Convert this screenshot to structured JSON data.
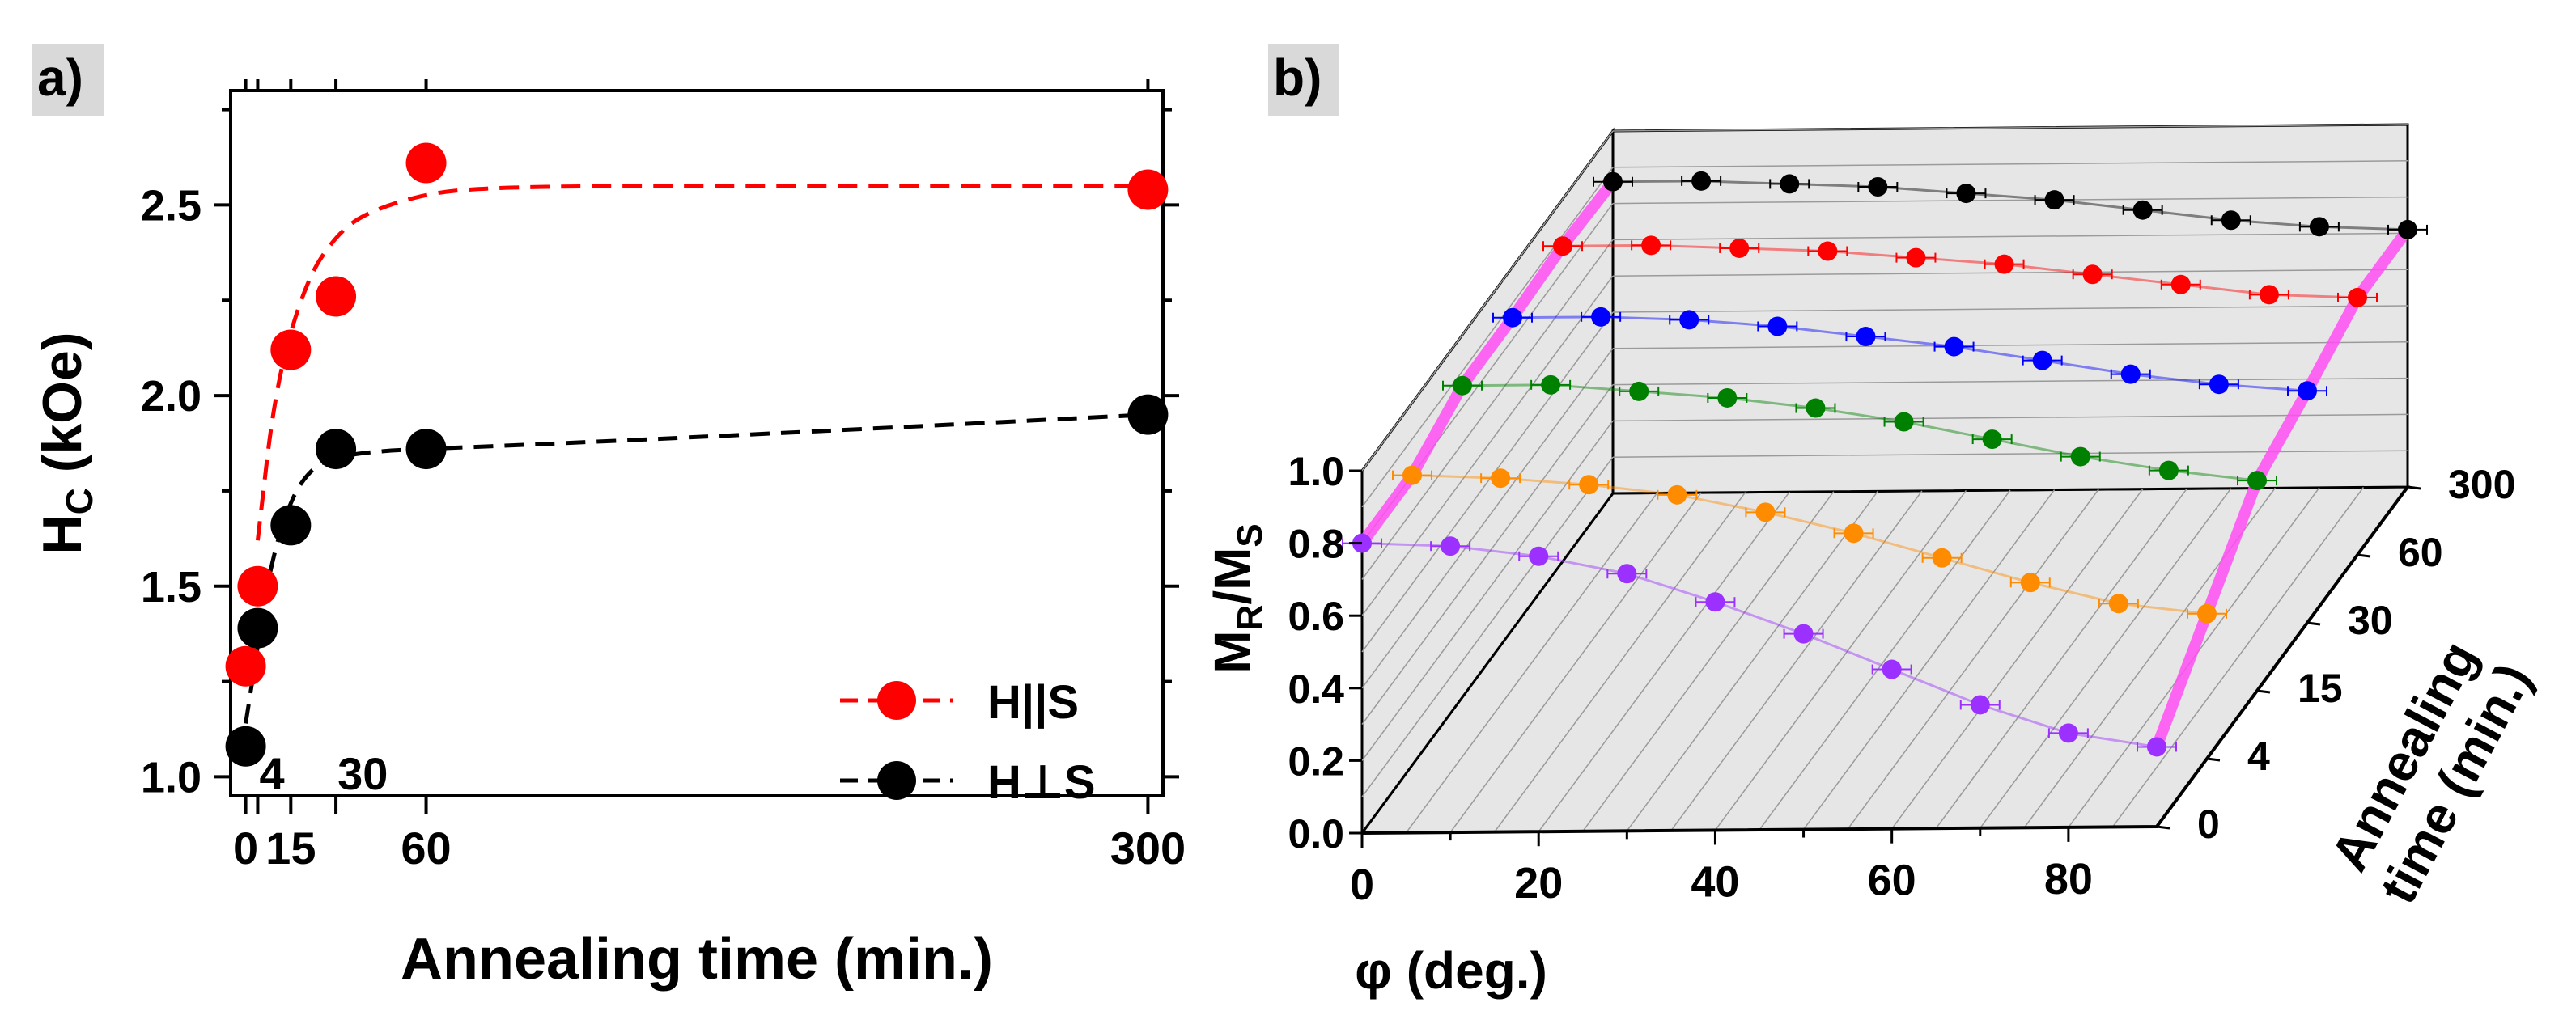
{
  "chart_data": [
    {
      "panel_label": "a)",
      "type": "scatter",
      "title": "",
      "xlabel": "Annealing time (min.)",
      "ylabel": "H",
      "ylabel_sub": "C",
      "ylabel_unit": " (kOe)",
      "xlim": [
        -5,
        305
      ],
      "ylim": [
        0.95,
        2.8
      ],
      "x_ticks": [
        0,
        15,
        60,
        300
      ],
      "x_tick_labels": [
        "0",
        "15",
        "60",
        "300"
      ],
      "x_extra_ticks": [
        4,
        30
      ],
      "x_extra_labels": [
        "4",
        "30"
      ],
      "y_ticks": [
        1.0,
        1.5,
        2.0,
        2.5
      ],
      "y_tick_labels": [
        "1.0",
        "1.5",
        "2.0",
        "2.5"
      ],
      "legend_position": "bottom-right",
      "series": [
        {
          "name": "H||S",
          "color": "#ff0000",
          "x": [
            0,
            4,
            15,
            30,
            60,
            300
          ],
          "y": [
            1.29,
            1.5,
            2.12,
            2.26,
            2.61,
            2.54
          ],
          "fit_x": [
            4,
            10,
            20,
            30,
            40,
            60,
            80,
            120,
            180,
            240,
            300
          ],
          "fit_y": [
            1.62,
            2.03,
            2.3,
            2.42,
            2.48,
            2.53,
            2.545,
            2.55,
            2.55,
            2.55,
            2.55
          ]
        },
        {
          "name": "H⊥S",
          "color": "#000000",
          "x": [
            0,
            4,
            15,
            30,
            60,
            300
          ],
          "y": [
            1.08,
            1.39,
            1.66,
            1.86,
            1.86,
            1.95
          ],
          "fit_x": [
            0,
            3,
            8,
            15,
            22,
            30,
            45,
            60,
            120,
            200,
            300
          ],
          "fit_y": [
            1.14,
            1.29,
            1.55,
            1.73,
            1.81,
            1.84,
            1.855,
            1.86,
            1.88,
            1.91,
            1.95
          ]
        }
      ]
    },
    {
      "panel_label": "b)",
      "type": "scatter",
      "title": "",
      "xlabel": "φ (deg.)",
      "ylabel": "M",
      "ylabel_sub1": "R",
      "ylabel_mid": "/M",
      "ylabel_sub2": "S",
      "zlabel_line1": "Annealing",
      "zlabel_line2": "time (min.)",
      "xlim": [
        0,
        90
      ],
      "ylim": [
        0,
        1.0
      ],
      "x_ticks": [
        0,
        20,
        40,
        60,
        80
      ],
      "x_tick_labels": [
        "0",
        "20",
        "40",
        "60",
        "80"
      ],
      "y_ticks": [
        0.0,
        0.2,
        0.4,
        0.6,
        0.8,
        1.0
      ],
      "y_tick_labels": [
        "0.0",
        "0.2",
        "0.4",
        "0.6",
        "0.8",
        "1.0"
      ],
      "z_tick_labels": [
        "0",
        "4",
        "15",
        "30",
        "60",
        "300"
      ],
      "envelope_color": "#ff4df2",
      "series": [
        {
          "name": "0",
          "color": "#9b30ff",
          "phi": [
            0,
            10,
            20,
            30,
            40,
            50,
            60,
            70,
            80,
            90
          ],
          "mr": [
            0.8,
            0.79,
            0.76,
            0.71,
            0.63,
            0.54,
            0.44,
            0.34,
            0.26,
            0.22
          ]
        },
        {
          "name": "4",
          "color": "#ff8c00",
          "phi": [
            0,
            10,
            20,
            30,
            40,
            50,
            60,
            70,
            80,
            90
          ],
          "mr": [
            0.8,
            0.79,
            0.77,
            0.74,
            0.69,
            0.63,
            0.56,
            0.49,
            0.43,
            0.4
          ]
        },
        {
          "name": "15",
          "color": "#008000",
          "phi": [
            0,
            10,
            20,
            30,
            40,
            50,
            60,
            70,
            80,
            90
          ],
          "mr": [
            0.86,
            0.86,
            0.84,
            0.82,
            0.79,
            0.75,
            0.7,
            0.65,
            0.61,
            0.58
          ]
        },
        {
          "name": "30",
          "color": "#0000ff",
          "phi": [
            0,
            10,
            20,
            30,
            40,
            50,
            60,
            70,
            80,
            90
          ],
          "mr": [
            0.86,
            0.86,
            0.85,
            0.83,
            0.8,
            0.77,
            0.73,
            0.69,
            0.66,
            0.64
          ]
        },
        {
          "name": "60",
          "color": "#ff0000",
          "phi": [
            0,
            10,
            20,
            30,
            40,
            50,
            60,
            70,
            80,
            90
          ],
          "mr": [
            0.87,
            0.87,
            0.86,
            0.85,
            0.83,
            0.81,
            0.78,
            0.75,
            0.72,
            0.71
          ]
        },
        {
          "name": "300",
          "color": "#000000",
          "phi": [
            0,
            10,
            20,
            30,
            40,
            50,
            60,
            70,
            80,
            90
          ],
          "mr": [
            0.86,
            0.86,
            0.85,
            0.84,
            0.82,
            0.8,
            0.77,
            0.74,
            0.72,
            0.71
          ]
        }
      ]
    }
  ]
}
